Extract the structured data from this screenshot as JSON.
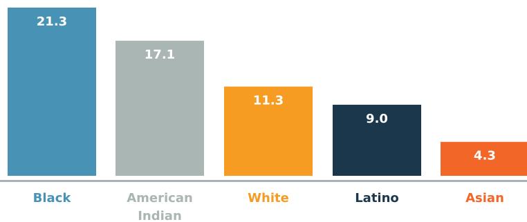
{
  "chart_data": {
    "type": "bar",
    "categories": [
      "Black",
      "American Indian",
      "White",
      "Latino",
      "Asian"
    ],
    "category_lines": [
      [
        "Black"
      ],
      [
        "American",
        "Indian"
      ],
      [
        "White"
      ],
      [
        "Latino"
      ],
      [
        "Asian"
      ]
    ],
    "values": [
      21.3,
      17.1,
      11.3,
      9.0,
      4.3
    ],
    "value_labels": [
      "21.3",
      "17.1",
      "11.3",
      "9.0",
      "4.3"
    ],
    "colors": [
      "#4893b5",
      "#a9b6b3",
      "#f69c23",
      "#1b374c",
      "#f26728"
    ],
    "label_colors": [
      "#4893b5",
      "#a9b6b3",
      "#f69c23",
      "#1b374c",
      "#f26728"
    ],
    "baseline_color": "#a9b2b8",
    "title": "",
    "xlabel": "",
    "ylabel": "",
    "ylim": [
      0,
      21.3
    ],
    "grid": false,
    "legend": "none"
  }
}
